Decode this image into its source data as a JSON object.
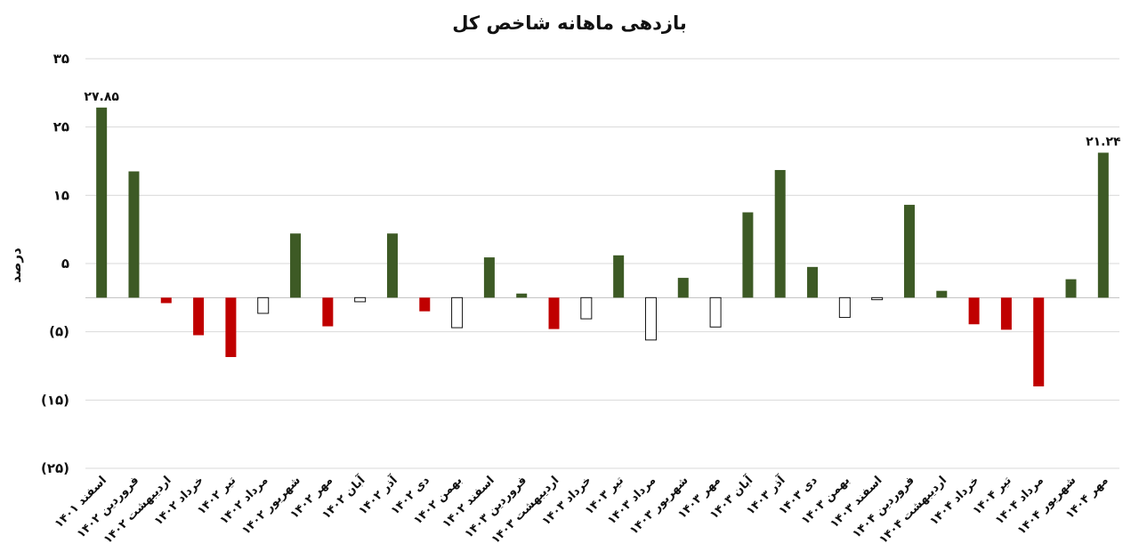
{
  "chart_data": {
    "type": "bar",
    "title": "بازدهی ماهانه شاخص کل",
    "xlabel": "",
    "ylabel": "درصد",
    "ylim": [
      -25,
      35
    ],
    "y_ticks": [
      "۳۵",
      "۲۵",
      "۱۵",
      "۵",
      "(۵)",
      "(۱۵)",
      "(۲۵)"
    ],
    "grid": true,
    "legend": "none",
    "colors": {
      "positive": "#3d5a25",
      "negative": "#c00000",
      "hollow_border": "#111111",
      "grid": "#d9d9d9"
    },
    "categories": [
      "اسفند ۱۴۰۱",
      "فروردین ۱۴۰۲",
      "اردیبهشت ۱۴۰۲",
      "خرداد ۱۴۰۲",
      "تیر ۱۴۰۲",
      "مرداد ۱۴۰۲",
      "شهریور ۱۴۰۲",
      "مهر ۱۴۰۲",
      "آبان ۱۴۰۲",
      "آذر ۱۴۰۲",
      "دی ۱۴۰۲",
      "بهمن ۱۴۰۲",
      "اسفند ۱۴۰۲",
      "فروردین ۱۴۰۳",
      "اردیبهشت ۱۴۰۳",
      "خرداد ۱۴۰۳",
      "تیر ۱۴۰۳",
      "مرداد ۱۴۰۳",
      "شهریور ۱۴۰۳",
      "مهر ۱۴۰۳",
      "آبان ۱۴۰۳",
      "آذر ۱۴۰۳",
      "دی ۱۴۰۳",
      "بهمن ۱۴۰۳",
      "اسفند ۱۴۰۳",
      "فروردین ۱۴۰۴",
      "اردیبهشت ۱۴۰۴",
      "خرداد ۱۴۰۴",
      "تیر ۱۴۰۴",
      "مرداد ۱۴۰۴",
      "شهریور ۱۴۰۴",
      "مهر ۱۴۰۴"
    ],
    "values": [
      27.85,
      18.5,
      -0.8,
      -5.5,
      -8.7,
      -2.3,
      9.4,
      -4.2,
      -0.6,
      9.4,
      -2.0,
      -4.4,
      5.9,
      0.6,
      -4.6,
      -3.1,
      6.2,
      -6.2,
      2.9,
      -4.3,
      12.5,
      18.7,
      4.5,
      -2.9,
      -0.3,
      13.6,
      1.0,
      -3.9,
      -4.7,
      -13.0,
      2.7,
      21.24
    ],
    "styles": [
      "positive",
      "positive",
      "negative",
      "negative",
      "negative",
      "hollow",
      "positive",
      "negative",
      "hollow",
      "positive",
      "negative",
      "hollow",
      "positive",
      "positive",
      "negative",
      "hollow",
      "positive",
      "hollow",
      "positive",
      "hollow",
      "positive",
      "positive",
      "positive",
      "hollow",
      "hollow",
      "positive",
      "positive",
      "negative",
      "negative",
      "negative",
      "positive",
      "positive"
    ],
    "data_labels": [
      {
        "index": 0,
        "text": "۲۷.۸۵"
      },
      {
        "index": 31,
        "text": "۲۱.۲۴"
      }
    ]
  }
}
